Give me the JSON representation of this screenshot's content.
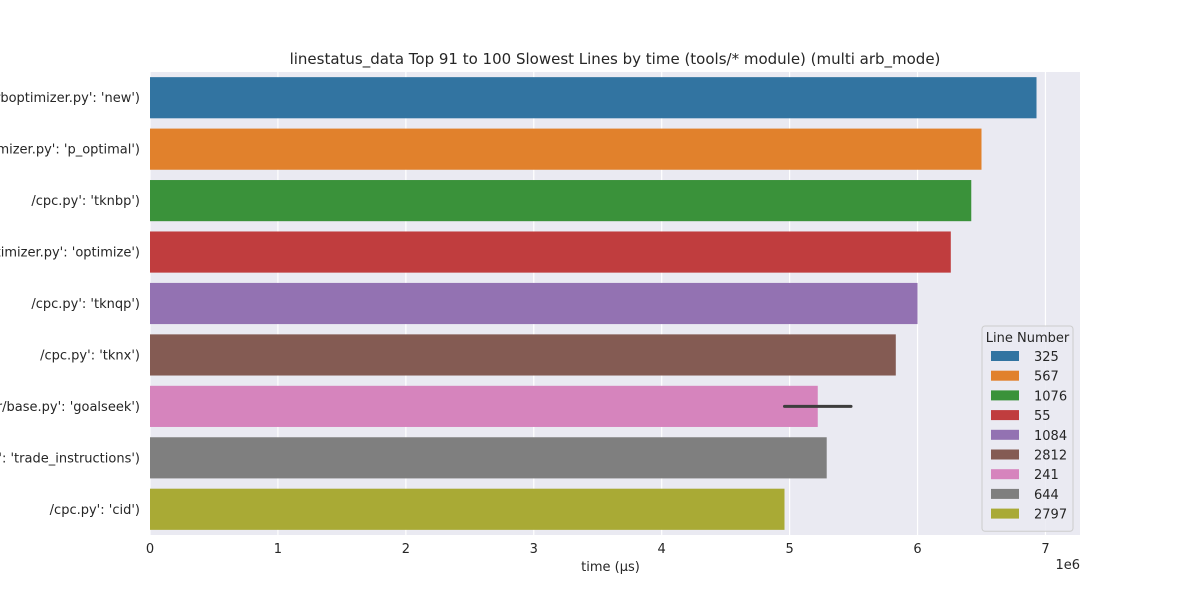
{
  "chart_data": {
    "type": "bar",
    "orientation": "horizontal",
    "title": "linestatus_data Top 91 to 100 Slowest Lines by time (tools/* module) (multi arb_mode)",
    "xlabel": "time (µs)",
    "ylabel": "",
    "x_offset_label": "1e6",
    "xlim": [
      0,
      7.27
    ],
    "x_ticks": [
      0,
      1,
      2,
      3,
      4,
      5,
      6,
      7
    ],
    "x_tick_labels": [
      "0",
      "1",
      "2",
      "3",
      "4",
      "5",
      "6",
      "7"
    ],
    "categories": [
      "arboptimizer.py': 'new')",
      "timizer.py': 'p_optimal')",
      "/cpc.py': 'tknbp')",
      "ptimizer.py': 'optimize')",
      "/cpc.py': 'tknqp')",
      "/cpc.py': 'tknx')",
      "er/base.py': 'goalseek')",
      "py': 'trade_instructions')",
      "/cpc.py': 'cid')"
    ],
    "values": [
      6.93,
      6.5,
      6.42,
      6.26,
      6.0,
      5.83,
      5.22,
      5.29,
      4.96
    ],
    "error_bars": [
      null,
      null,
      null,
      null,
      null,
      null,
      [
        4.96,
        5.48
      ],
      null,
      null
    ],
    "colors": [
      "#3274a1",
      "#e1812c",
      "#3a923a",
      "#c03d3e",
      "#9372b2",
      "#845b53",
      "#d684bd",
      "#7f7f7f",
      "#a9aa35"
    ],
    "grid": true,
    "background": "#eaeaf2",
    "legend_position": "lower-right",
    "legend": {
      "title": "Line Number",
      "entries": [
        "325",
        "567",
        "1076",
        "55",
        "1084",
        "2812",
        "241",
        "644",
        "2797"
      ]
    }
  }
}
